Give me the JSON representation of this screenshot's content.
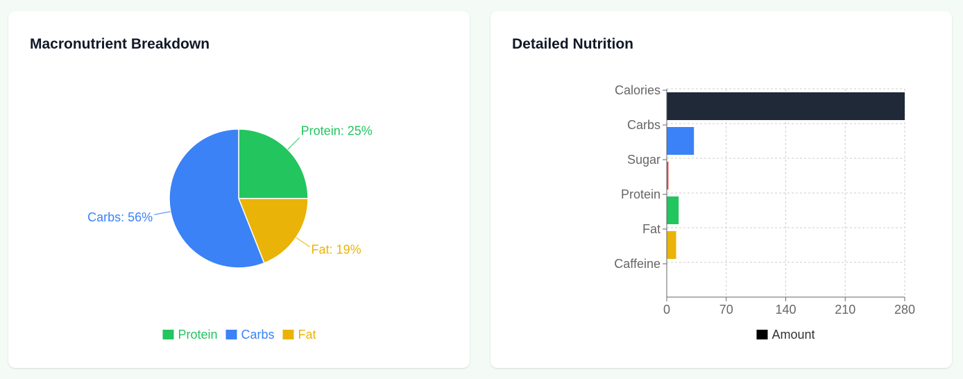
{
  "left_card": {
    "title": "Macronutrient Breakdown"
  },
  "right_card": {
    "title": "Detailed Nutrition"
  },
  "chart_data": [
    {
      "type": "pie",
      "title": "Macronutrient Breakdown",
      "slices": [
        {
          "name": "Protein",
          "value": 25,
          "label": "Protein: 25%",
          "color": "#22c55e"
        },
        {
          "name": "Fat",
          "value": 19,
          "label": "Fat: 19%",
          "color": "#eab308"
        },
        {
          "name": "Carbs",
          "value": 56,
          "label": "Carbs: 56%",
          "color": "#3b82f6"
        }
      ],
      "legend": {
        "placement": "bottom",
        "items": [
          {
            "name": "Protein",
            "color": "#22c55e"
          },
          {
            "name": "Carbs",
            "color": "#3b82f6"
          },
          {
            "name": "Fat",
            "color": "#eab308"
          }
        ]
      }
    },
    {
      "type": "bar",
      "orientation": "horizontal",
      "title": "Detailed Nutrition",
      "categories": [
        "Calories",
        "Carbs",
        "Sugar",
        "Protein",
        "Fat",
        "Caffeine"
      ],
      "series": [
        {
          "name": "Amount",
          "values": [
            280,
            32,
            2,
            14,
            11,
            0
          ],
          "colors": [
            "#1f2937",
            "#3b82f6",
            "#ef4444",
            "#22c55e",
            "#eab308",
            "#8b5cf6"
          ]
        }
      ],
      "xlim": [
        0,
        280
      ],
      "xticks": [
        0,
        70,
        140,
        210,
        280
      ],
      "grid": true,
      "legend": {
        "placement": "bottom",
        "items": [
          {
            "name": "Amount",
            "color": "#000000"
          }
        ]
      }
    }
  ]
}
